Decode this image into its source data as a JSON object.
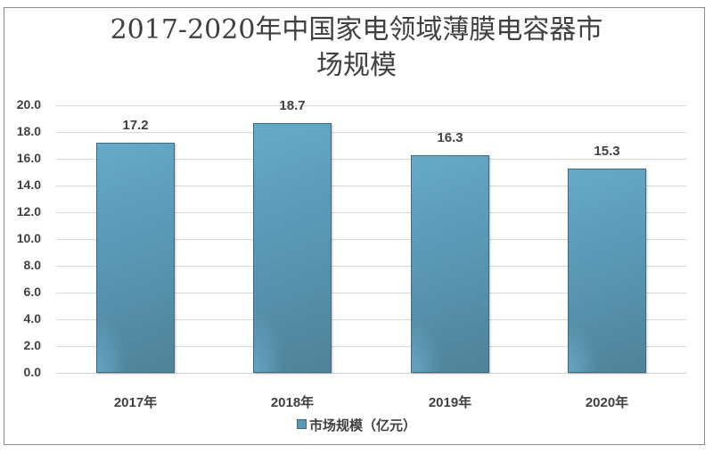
{
  "chart_data": {
    "type": "bar",
    "title": "2017-2020年中国家电领域薄膜电容器市场规模",
    "title_lines": [
      "2017-2020年中国家电领域薄膜电容器市",
      "场规模"
    ],
    "categories": [
      "2017年",
      "2018年",
      "2019年",
      "2020年"
    ],
    "series": [
      {
        "name": "市场规模（亿元）",
        "values": [
          17.2,
          18.7,
          16.3,
          15.3
        ],
        "color": "#5a98b5"
      }
    ],
    "value_labels": [
      "17.2",
      "18.7",
      "16.3",
      "15.3"
    ],
    "xlabel": "",
    "ylabel": "",
    "ylim": [
      0,
      20
    ],
    "yticks": [
      "20.0",
      "18.0",
      "16.0",
      "14.0",
      "12.0",
      "10.0",
      "8.0",
      "6.0",
      "4.0",
      "2.0",
      "0.0"
    ],
    "grid": true,
    "legend_position": "bottom"
  },
  "legend": {
    "label": "市场规模（亿元）"
  }
}
